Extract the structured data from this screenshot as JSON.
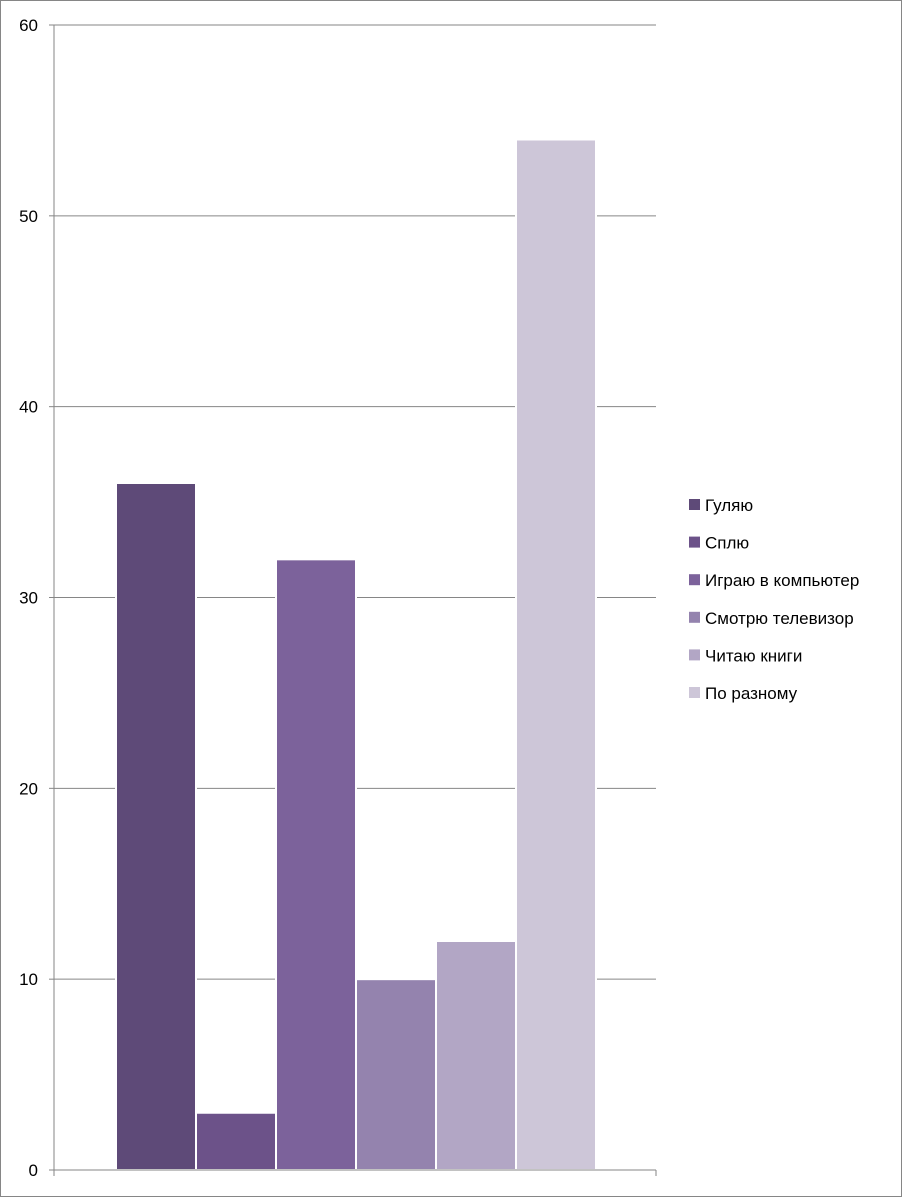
{
  "chart_data": {
    "type": "bar",
    "title": "",
    "xlabel": "",
    "ylabel": "",
    "ylim": [
      0,
      60
    ],
    "yticks": [
      0,
      10,
      20,
      30,
      40,
      50,
      60
    ],
    "grid": true,
    "legend_position": "right",
    "series": [
      {
        "name": "Гуляю",
        "value": 36,
        "color": "#5e4a78"
      },
      {
        "name": "Сплю",
        "value": 3,
        "color": "#6c5289"
      },
      {
        "name": "Играю в компьютер",
        "value": 32,
        "color": "#7c629b"
      },
      {
        "name": "Смотрю телевизор",
        "value": 10,
        "color": "#9483ae"
      },
      {
        "name": "Читаю книги",
        "value": 12,
        "color": "#b2a6c5"
      },
      {
        "name": "По разному",
        "value": 54,
        "color": "#cdc6d8"
      }
    ]
  }
}
